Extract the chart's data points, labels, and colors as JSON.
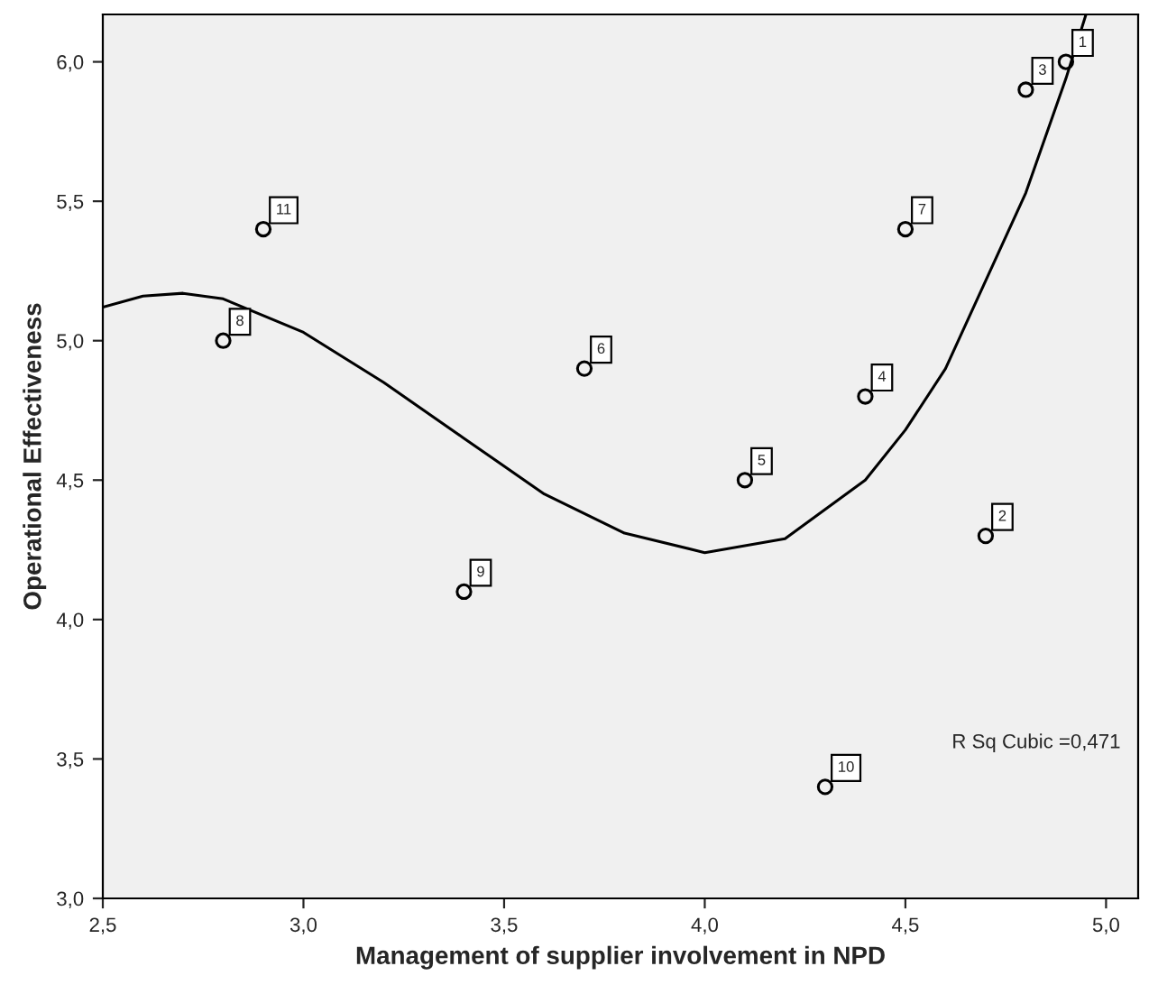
{
  "chart_data": {
    "type": "scatter",
    "xlabel": "Management of supplier involvement in NPD",
    "ylabel": "Operational Effectiveness",
    "xlim": [
      2.5,
      5.08
    ],
    "ylim": [
      3.0,
      6.17
    ],
    "xticks": [
      {
        "value": 2.5,
        "label": "2,5"
      },
      {
        "value": 3.0,
        "label": "3,0"
      },
      {
        "value": 3.5,
        "label": "3,5"
      },
      {
        "value": 4.0,
        "label": "4,0"
      },
      {
        "value": 4.5,
        "label": "4,5"
      },
      {
        "value": 5.0,
        "label": "5,0"
      }
    ],
    "yticks": [
      {
        "value": 3.0,
        "label": "3,0"
      },
      {
        "value": 3.5,
        "label": "3,5"
      },
      {
        "value": 4.0,
        "label": "4,0"
      },
      {
        "value": 4.5,
        "label": "4,5"
      },
      {
        "value": 5.0,
        "label": "5,0"
      },
      {
        "value": 5.5,
        "label": "5,5"
      },
      {
        "value": 6.0,
        "label": "6,0"
      }
    ],
    "grid": false,
    "legend": false,
    "series": [
      {
        "color": "#000000",
        "marker": "circle",
        "x": [
          4.9,
          4.7,
          4.8,
          4.4,
          4.1,
          3.7,
          4.5,
          2.8,
          3.4,
          4.3,
          2.9
        ],
        "values": [
          6.0,
          4.3,
          5.9,
          4.8,
          4.5,
          4.9,
          5.4,
          5.0,
          4.1,
          3.4,
          5.4
        ]
      },
      {
        "type": "line",
        "color": "#000000",
        "line_style": "solid",
        "x": [
          2.5,
          2.6,
          2.7,
          2.8,
          3.0,
          3.2,
          3.4,
          3.6,
          3.8,
          4.0,
          4.2,
          4.4,
          4.5,
          4.6,
          4.8,
          4.9,
          4.95
        ],
        "values": [
          5.12,
          5.16,
          5.17,
          5.15,
          5.03,
          4.85,
          4.65,
          4.45,
          4.31,
          4.24,
          4.29,
          4.5,
          4.68,
          4.9,
          5.53,
          5.94,
          6.17
        ]
      }
    ],
    "annotations": [
      {
        "text": "1",
        "x": 4.9,
        "y": 6.0
      },
      {
        "text": "2",
        "x": 4.7,
        "y": 4.3
      },
      {
        "text": "3",
        "x": 4.8,
        "y": 5.9
      },
      {
        "text": "4",
        "x": 4.4,
        "y": 4.8
      },
      {
        "text": "5",
        "x": 4.1,
        "y": 4.5
      },
      {
        "text": "6",
        "x": 3.7,
        "y": 4.9
      },
      {
        "text": "7",
        "x": 4.5,
        "y": 5.4
      },
      {
        "text": "8",
        "x": 2.8,
        "y": 5.0
      },
      {
        "text": "9",
        "x": 3.4,
        "y": 4.1
      },
      {
        "text": "10",
        "x": 4.3,
        "y": 3.4
      },
      {
        "text": "11",
        "x": 2.9,
        "y": 5.4
      },
      "R Sq Cubic =0,471"
    ]
  }
}
